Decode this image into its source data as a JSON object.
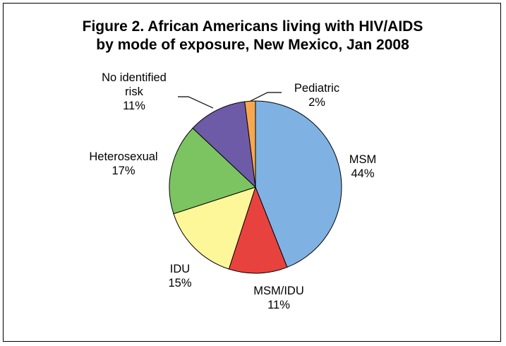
{
  "chart_data": {
    "type": "pie",
    "title_lines": [
      "Figure 2. African Americans living with HIV/AIDS",
      "by mode of exposure, New Mexico, Jan 2008"
    ],
    "slices": [
      {
        "label": "MSM",
        "value": 44,
        "percent_label": "44%",
        "color": "#7fb2e3"
      },
      {
        "label": "MSM/IDU",
        "value": 11,
        "percent_label": "11%",
        "color": "#e8423f"
      },
      {
        "label": "IDU",
        "value": 15,
        "percent_label": "15%",
        "color": "#fdf79a"
      },
      {
        "label": "Heterosexual",
        "value": 17,
        "percent_label": "17%",
        "color": "#7cc462"
      },
      {
        "label_lines": [
          "No identified",
          "risk"
        ],
        "value": 11,
        "percent_label": "11%",
        "color": "#6e5ba8"
      },
      {
        "label": "Pediatric",
        "value": 2,
        "percent_label": "2%",
        "color": "#f7a84e"
      }
    ],
    "start": "12 o'clock, clockwise"
  }
}
